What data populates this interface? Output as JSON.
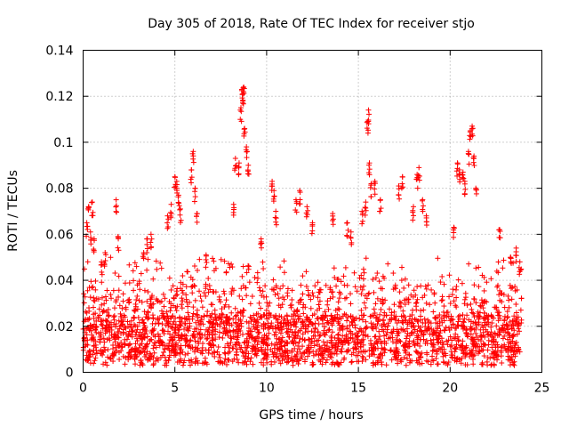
{
  "chart_data": {
    "type": "scatter",
    "title": "Day 305 of 2018, Rate Of TEC Index for receiver stjo",
    "xlabel": "GPS time / hours",
    "ylabel": "ROTI / TECUs",
    "xlim": [
      0,
      25
    ],
    "ylim": [
      0,
      0.14
    ],
    "x_ticks": [
      0,
      5,
      10,
      15,
      20,
      25
    ],
    "x_tick_labels": [
      "0",
      "5",
      "10",
      "15",
      "20",
      "25"
    ],
    "y_ticks": [
      0,
      0.02,
      0.04,
      0.06,
      0.08,
      0.1,
      0.12,
      0.14
    ],
    "y_tick_labels": [
      "0",
      "0.02",
      "0.04",
      "0.06",
      "0.08",
      "0.1",
      "0.12",
      "0.14"
    ],
    "grid": true,
    "marker": "plus",
    "marker_color": "#ff0000",
    "series": [
      {
        "name": "ROTI",
        "points": [
          [
            0.2,
            0.065
          ],
          [
            0.3,
            0.072
          ],
          [
            0.4,
            0.061
          ],
          [
            0.5,
            0.074
          ],
          [
            0.6,
            0.058
          ],
          [
            1.0,
            0.048
          ],
          [
            1.2,
            0.052
          ],
          [
            1.8,
            0.075
          ],
          [
            1.9,
            0.059
          ],
          [
            3.3,
            0.052
          ],
          [
            3.5,
            0.058
          ],
          [
            3.7,
            0.06
          ],
          [
            4.6,
            0.068
          ],
          [
            4.8,
            0.073
          ],
          [
            5.0,
            0.085
          ],
          [
            5.1,
            0.083
          ],
          [
            5.2,
            0.077
          ],
          [
            5.3,
            0.071
          ],
          [
            5.9,
            0.088
          ],
          [
            6.0,
            0.096
          ],
          [
            6.1,
            0.08
          ],
          [
            6.2,
            0.069
          ],
          [
            6.7,
            0.051
          ],
          [
            8.2,
            0.073
          ],
          [
            8.3,
            0.093
          ],
          [
            8.5,
            0.091
          ],
          [
            8.6,
            0.115
          ],
          [
            8.65,
            0.123
          ],
          [
            8.7,
            0.121
          ],
          [
            8.75,
            0.124
          ],
          [
            8.8,
            0.106
          ],
          [
            8.9,
            0.098
          ],
          [
            9.0,
            0.09
          ],
          [
            9.7,
            0.058
          ],
          [
            10.3,
            0.083
          ],
          [
            10.4,
            0.079
          ],
          [
            10.5,
            0.07
          ],
          [
            11.6,
            0.075
          ],
          [
            11.8,
            0.079
          ],
          [
            12.2,
            0.072
          ],
          [
            12.5,
            0.065
          ],
          [
            13.6,
            0.069
          ],
          [
            14.4,
            0.065
          ],
          [
            14.6,
            0.061
          ],
          [
            15.2,
            0.07
          ],
          [
            15.4,
            0.074
          ],
          [
            15.5,
            0.109
          ],
          [
            15.55,
            0.114
          ],
          [
            15.6,
            0.091
          ],
          [
            15.7,
            0.082
          ],
          [
            15.9,
            0.083
          ],
          [
            16.2,
            0.075
          ],
          [
            17.2,
            0.081
          ],
          [
            17.4,
            0.085
          ],
          [
            18.0,
            0.072
          ],
          [
            18.2,
            0.086
          ],
          [
            18.3,
            0.089
          ],
          [
            18.5,
            0.075
          ],
          [
            18.7,
            0.068
          ],
          [
            20.2,
            0.063
          ],
          [
            20.4,
            0.091
          ],
          [
            20.5,
            0.088
          ],
          [
            20.7,
            0.087
          ],
          [
            20.8,
            0.083
          ],
          [
            21.0,
            0.096
          ],
          [
            21.1,
            0.105
          ],
          [
            21.2,
            0.107
          ],
          [
            21.3,
            0.094
          ],
          [
            21.4,
            0.08
          ],
          [
            22.7,
            0.062
          ],
          [
            23.3,
            0.05
          ],
          [
            23.6,
            0.054
          ],
          [
            23.8,
            0.048
          ]
        ]
      }
    ]
  }
}
